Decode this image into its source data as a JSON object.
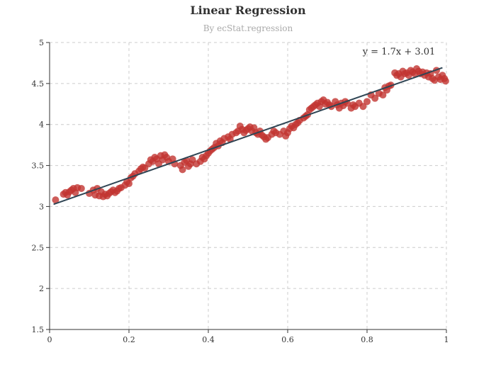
{
  "chart_data": {
    "type": "scatter",
    "title": "Linear Regression",
    "subtitle": "By ecStat.regression",
    "xlim": [
      0,
      1
    ],
    "ylim": [
      1.5,
      5
    ],
    "x_ticks": [
      0,
      0.2,
      0.4,
      0.6,
      0.8,
      1
    ],
    "y_ticks": [
      1.5,
      2,
      2.5,
      3,
      3.5,
      4,
      4.5,
      5
    ],
    "grid": true,
    "regression": {
      "slope": 1.7,
      "intercept": 3.01,
      "x_range": [
        0.01,
        0.99
      ],
      "annotation": "y = 1.7x + 3.01"
    },
    "colors": {
      "points": "#c23531",
      "line": "#2f4554"
    },
    "points": [
      [
        0.015,
        3.08
      ],
      [
        0.035,
        3.15
      ],
      [
        0.04,
        3.17
      ],
      [
        0.045,
        3.14
      ],
      [
        0.05,
        3.18
      ],
      [
        0.055,
        3.2
      ],
      [
        0.06,
        3.22
      ],
      [
        0.065,
        3.17
      ],
      [
        0.07,
        3.23
      ],
      [
        0.08,
        3.22
      ],
      [
        0.1,
        3.16
      ],
      [
        0.11,
        3.2
      ],
      [
        0.115,
        3.14
      ],
      [
        0.12,
        3.22
      ],
      [
        0.125,
        3.13
      ],
      [
        0.13,
        3.18
      ],
      [
        0.135,
        3.12
      ],
      [
        0.14,
        3.15
      ],
      [
        0.145,
        3.13
      ],
      [
        0.15,
        3.16
      ],
      [
        0.155,
        3.18
      ],
      [
        0.16,
        3.2
      ],
      [
        0.165,
        3.17
      ],
      [
        0.17,
        3.19
      ],
      [
        0.175,
        3.22
      ],
      [
        0.18,
        3.23
      ],
      [
        0.19,
        3.26
      ],
      [
        0.195,
        3.3
      ],
      [
        0.2,
        3.28
      ],
      [
        0.205,
        3.35
      ],
      [
        0.21,
        3.37
      ],
      [
        0.215,
        3.4
      ],
      [
        0.225,
        3.43
      ],
      [
        0.23,
        3.46
      ],
      [
        0.235,
        3.48
      ],
      [
        0.24,
        3.47
      ],
      [
        0.25,
        3.52
      ],
      [
        0.255,
        3.57
      ],
      [
        0.26,
        3.55
      ],
      [
        0.265,
        3.6
      ],
      [
        0.27,
        3.58
      ],
      [
        0.275,
        3.52
      ],
      [
        0.28,
        3.62
      ],
      [
        0.285,
        3.57
      ],
      [
        0.29,
        3.63
      ],
      [
        0.295,
        3.6
      ],
      [
        0.3,
        3.55
      ],
      [
        0.31,
        3.58
      ],
      [
        0.315,
        3.52
      ],
      [
        0.33,
        3.5
      ],
      [
        0.335,
        3.45
      ],
      [
        0.34,
        3.54
      ],
      [
        0.345,
        3.56
      ],
      [
        0.35,
        3.49
      ],
      [
        0.355,
        3.52
      ],
      [
        0.36,
        3.57
      ],
      [
        0.37,
        3.52
      ],
      [
        0.38,
        3.55
      ],
      [
        0.385,
        3.6
      ],
      [
        0.39,
        3.58
      ],
      [
        0.395,
        3.62
      ],
      [
        0.4,
        3.65
      ],
      [
        0.405,
        3.68
      ],
      [
        0.41,
        3.7
      ],
      [
        0.415,
        3.72
      ],
      [
        0.42,
        3.77
      ],
      [
        0.425,
        3.74
      ],
      [
        0.43,
        3.8
      ],
      [
        0.435,
        3.78
      ],
      [
        0.44,
        3.83
      ],
      [
        0.45,
        3.85
      ],
      [
        0.455,
        3.82
      ],
      [
        0.46,
        3.88
      ],
      [
        0.47,
        3.9
      ],
      [
        0.475,
        3.92
      ],
      [
        0.48,
        3.98
      ],
      [
        0.485,
        3.94
      ],
      [
        0.49,
        3.9
      ],
      [
        0.495,
        3.93
      ],
      [
        0.5,
        3.95
      ],
      [
        0.505,
        3.97
      ],
      [
        0.51,
        3.92
      ],
      [
        0.515,
        3.96
      ],
      [
        0.52,
        3.9
      ],
      [
        0.525,
        3.88
      ],
      [
        0.53,
        3.92
      ],
      [
        0.535,
        3.87
      ],
      [
        0.54,
        3.85
      ],
      [
        0.545,
        3.82
      ],
      [
        0.55,
        3.84
      ],
      [
        0.56,
        3.88
      ],
      [
        0.565,
        3.92
      ],
      [
        0.57,
        3.9
      ],
      [
        0.58,
        3.88
      ],
      [
        0.59,
        3.92
      ],
      [
        0.595,
        3.86
      ],
      [
        0.6,
        3.9
      ],
      [
        0.605,
        3.95
      ],
      [
        0.61,
        3.98
      ],
      [
        0.615,
        3.96
      ],
      [
        0.62,
        4.0
      ],
      [
        0.625,
        4.02
      ],
      [
        0.63,
        4.05
      ],
      [
        0.64,
        4.08
      ],
      [
        0.645,
        4.1
      ],
      [
        0.65,
        4.12
      ],
      [
        0.655,
        4.18
      ],
      [
        0.66,
        4.2
      ],
      [
        0.665,
        4.22
      ],
      [
        0.67,
        4.24
      ],
      [
        0.675,
        4.26
      ],
      [
        0.68,
        4.22
      ],
      [
        0.685,
        4.28
      ],
      [
        0.69,
        4.3
      ],
      [
        0.695,
        4.25
      ],
      [
        0.7,
        4.27
      ],
      [
        0.705,
        4.24
      ],
      [
        0.71,
        4.22
      ],
      [
        0.72,
        4.28
      ],
      [
        0.725,
        4.24
      ],
      [
        0.73,
        4.2
      ],
      [
        0.735,
        4.26
      ],
      [
        0.74,
        4.23
      ],
      [
        0.745,
        4.28
      ],
      [
        0.75,
        4.26
      ],
      [
        0.76,
        4.2
      ],
      [
        0.765,
        4.24
      ],
      [
        0.77,
        4.22
      ],
      [
        0.78,
        4.26
      ],
      [
        0.79,
        4.22
      ],
      [
        0.8,
        4.28
      ],
      [
        0.81,
        4.36
      ],
      [
        0.82,
        4.32
      ],
      [
        0.83,
        4.38
      ],
      [
        0.84,
        4.36
      ],
      [
        0.845,
        4.45
      ],
      [
        0.85,
        4.42
      ],
      [
        0.855,
        4.47
      ],
      [
        0.86,
        4.48
      ],
      [
        0.87,
        4.63
      ],
      [
        0.875,
        4.6
      ],
      [
        0.88,
        4.62
      ],
      [
        0.885,
        4.58
      ],
      [
        0.89,
        4.65
      ],
      [
        0.895,
        4.62
      ],
      [
        0.9,
        4.63
      ],
      [
        0.905,
        4.6
      ],
      [
        0.91,
        4.66
      ],
      [
        0.915,
        4.64
      ],
      [
        0.92,
        4.62
      ],
      [
        0.925,
        4.68
      ],
      [
        0.93,
        4.65
      ],
      [
        0.935,
        4.62
      ],
      [
        0.94,
        4.64
      ],
      [
        0.945,
        4.6
      ],
      [
        0.95,
        4.63
      ],
      [
        0.955,
        4.58
      ],
      [
        0.96,
        4.62
      ],
      [
        0.965,
        4.56
      ],
      [
        0.97,
        4.54
      ],
      [
        0.975,
        4.66
      ],
      [
        0.98,
        4.58
      ],
      [
        0.985,
        4.55
      ],
      [
        0.99,
        4.6
      ],
      [
        0.995,
        4.56
      ],
      [
        0.998,
        4.53
      ]
    ]
  }
}
